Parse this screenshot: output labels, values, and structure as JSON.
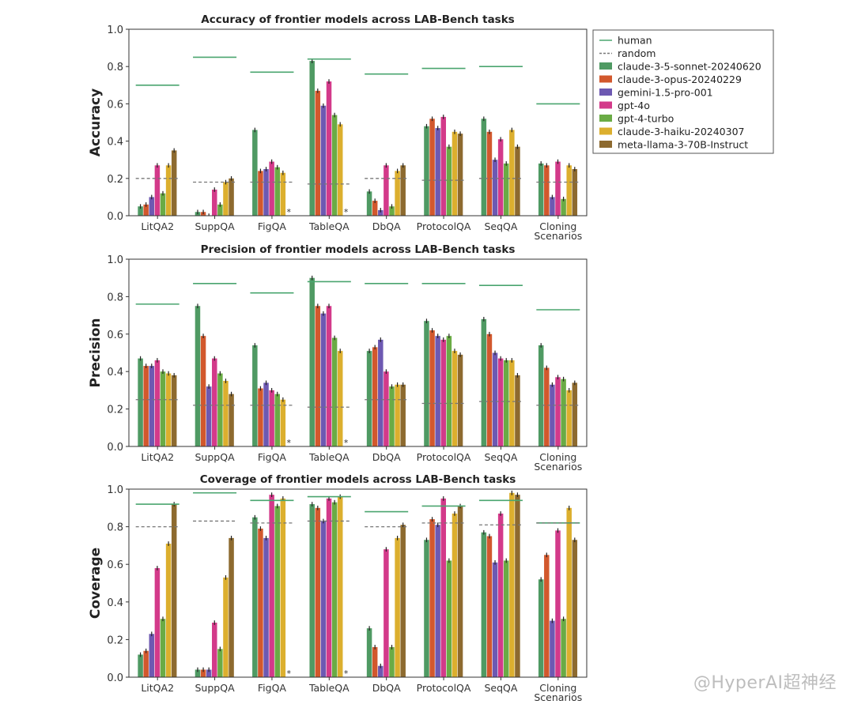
{
  "watermark": "@HyperAI超神经",
  "legend": {
    "reference_entries": [
      {
        "name": "human",
        "color": "#4aa56f",
        "style": "solid"
      },
      {
        "name": "random",
        "color": "#777777",
        "style": "dashed"
      }
    ]
  },
  "colors": {
    "claude-3-5-sonnet-20240620": "#4f9a63",
    "claude-3-opus-20240229": "#d2582d",
    "gemini-1.5-pro-001": "#6d59b2",
    "gpt-4o": "#d33a8a",
    "gpt-4-turbo": "#6aab45",
    "claude-3-haiku-20240307": "#dcaf2e",
    "meta-llama-3-70B-Instruct": "#8d6a2f",
    "human": "#4aa56f",
    "random": "#777777"
  },
  "chart_data": [
    {
      "type": "bar",
      "title": "Accuracy of frontier models across LAB-Bench tasks",
      "ylabel": "Accuracy",
      "xlabel": "",
      "ylim": [
        0,
        1.0
      ],
      "yticks": [
        "0.0",
        "0.2",
        "0.4",
        "0.6",
        "0.8",
        "1.0"
      ],
      "categories": [
        "LitQA2",
        "SuppQA",
        "FigQA",
        "TableQA",
        "DbQA",
        "ProtocolQA",
        "SeqQA",
        "Cloning\nScenarios"
      ],
      "series": [
        {
          "name": "claude-3-5-sonnet-20240620",
          "values": [
            0.05,
            0.02,
            0.46,
            0.83,
            0.13,
            0.48,
            0.52,
            0.28
          ]
        },
        {
          "name": "claude-3-opus-20240229",
          "values": [
            0.06,
            0.02,
            0.24,
            0.67,
            0.08,
            0.52,
            0.45,
            0.27
          ]
        },
        {
          "name": "gemini-1.5-pro-001",
          "values": [
            0.1,
            0.0,
            0.25,
            0.59,
            0.03,
            0.47,
            0.3,
            0.1
          ]
        },
        {
          "name": "gpt-4o",
          "values": [
            0.27,
            0.14,
            0.29,
            0.72,
            0.27,
            0.53,
            0.41,
            0.29
          ]
        },
        {
          "name": "gpt-4-turbo",
          "values": [
            0.12,
            0.06,
            0.26,
            0.54,
            0.05,
            0.37,
            0.28,
            0.09
          ]
        },
        {
          "name": "claude-3-haiku-20240307",
          "values": [
            0.27,
            0.18,
            0.23,
            0.49,
            0.24,
            0.45,
            0.46,
            0.27
          ]
        },
        {
          "name": "meta-llama-3-70B-Instruct",
          "values": [
            0.35,
            0.2,
            null,
            null,
            0.27,
            0.44,
            0.37,
            0.25
          ]
        }
      ],
      "human": [
        0.7,
        0.85,
        0.77,
        0.84,
        0.76,
        0.79,
        0.8,
        0.6
      ],
      "random": [
        0.2,
        0.18,
        0.18,
        0.17,
        0.2,
        0.19,
        0.2,
        0.18
      ],
      "missing_marker": "*",
      "legend_placement": "right"
    },
    {
      "type": "bar",
      "title": "Precision of frontier models across LAB-Bench tasks",
      "ylabel": "Precision",
      "xlabel": "",
      "ylim": [
        0,
        1.0
      ],
      "yticks": [
        "0.0",
        "0.2",
        "0.4",
        "0.6",
        "0.8",
        "1.0"
      ],
      "categories": [
        "LitQA2",
        "SuppQA",
        "FigQA",
        "TableQA",
        "DbQA",
        "ProtocolQA",
        "SeqQA",
        "Cloning\nScenarios"
      ],
      "series": [
        {
          "name": "claude-3-5-sonnet-20240620",
          "values": [
            0.47,
            0.75,
            0.54,
            0.9,
            0.51,
            0.67,
            0.68,
            0.54
          ]
        },
        {
          "name": "claude-3-opus-20240229",
          "values": [
            0.43,
            0.59,
            0.31,
            0.75,
            0.53,
            0.62,
            0.6,
            0.42
          ]
        },
        {
          "name": "gemini-1.5-pro-001",
          "values": [
            0.43,
            0.32,
            0.34,
            0.71,
            0.57,
            0.59,
            0.5,
            0.33
          ]
        },
        {
          "name": "gpt-4o",
          "values": [
            0.46,
            0.47,
            0.3,
            0.75,
            0.4,
            0.57,
            0.47,
            0.37
          ]
        },
        {
          "name": "gpt-4-turbo",
          "values": [
            0.4,
            0.39,
            0.28,
            0.58,
            0.32,
            0.59,
            0.46,
            0.36
          ]
        },
        {
          "name": "claude-3-haiku-20240307",
          "values": [
            0.39,
            0.35,
            0.25,
            0.51,
            0.33,
            0.51,
            0.46,
            0.3
          ]
        },
        {
          "name": "meta-llama-3-70B-Instruct",
          "values": [
            0.38,
            0.28,
            null,
            null,
            0.33,
            0.49,
            0.38,
            0.34
          ]
        }
      ],
      "human": [
        0.76,
        0.87,
        0.82,
        0.88,
        0.87,
        0.87,
        0.86,
        0.73
      ],
      "random": [
        0.25,
        0.22,
        0.22,
        0.21,
        0.25,
        0.23,
        0.24,
        0.22
      ],
      "missing_marker": "*"
    },
    {
      "type": "bar",
      "title": "Coverage of frontier models across LAB-Bench tasks",
      "ylabel": "Coverage",
      "xlabel": "",
      "ylim": [
        0,
        1.0
      ],
      "yticks": [
        "0.0",
        "0.2",
        "0.4",
        "0.6",
        "0.8",
        "1.0"
      ],
      "categories": [
        "LitQA2",
        "SuppQA",
        "FigQA",
        "TableQA",
        "DbQA",
        "ProtocolQA",
        "SeqQA",
        "Cloning\nScenarios"
      ],
      "series": [
        {
          "name": "claude-3-5-sonnet-20240620",
          "values": [
            0.12,
            0.04,
            0.85,
            0.92,
            0.26,
            0.73,
            0.77,
            0.52
          ]
        },
        {
          "name": "claude-3-opus-20240229",
          "values": [
            0.14,
            0.04,
            0.79,
            0.9,
            0.16,
            0.84,
            0.75,
            0.65
          ]
        },
        {
          "name": "gemini-1.5-pro-001",
          "values": [
            0.23,
            0.04,
            0.74,
            0.83,
            0.06,
            0.81,
            0.61,
            0.3
          ]
        },
        {
          "name": "gpt-4o",
          "values": [
            0.58,
            0.29,
            0.97,
            0.95,
            0.68,
            0.95,
            0.87,
            0.78
          ]
        },
        {
          "name": "gpt-4-turbo",
          "values": [
            0.31,
            0.15,
            0.91,
            0.93,
            0.16,
            0.62,
            0.62,
            0.31
          ]
        },
        {
          "name": "claude-3-haiku-20240307",
          "values": [
            0.71,
            0.53,
            0.95,
            0.96,
            0.74,
            0.87,
            0.98,
            0.9
          ]
        },
        {
          "name": "meta-llama-3-70B-Instruct",
          "values": [
            0.92,
            0.74,
            null,
            null,
            0.81,
            0.91,
            0.97,
            0.73
          ]
        }
      ],
      "human": [
        0.92,
        0.98,
        0.94,
        0.96,
        0.88,
        0.91,
        0.94,
        0.82
      ],
      "random": [
        0.8,
        0.83,
        0.82,
        0.83,
        0.8,
        0.82,
        0.81,
        0.82
      ],
      "missing_marker": "*"
    }
  ]
}
